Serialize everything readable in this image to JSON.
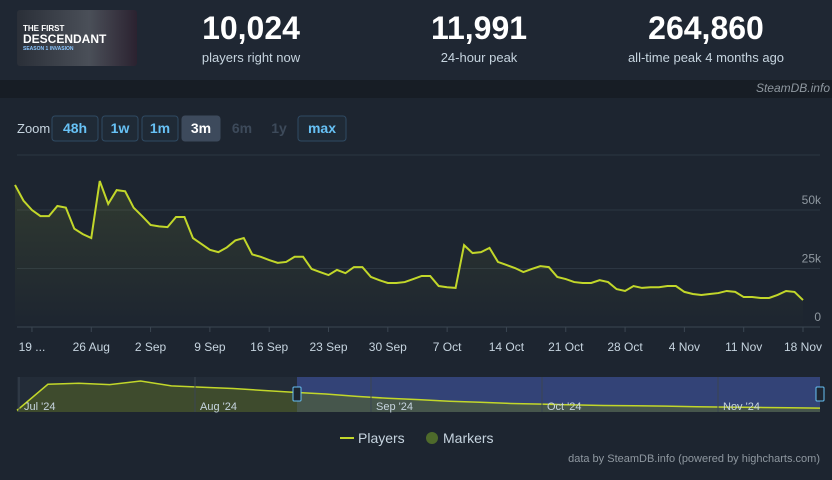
{
  "logo": [
    "THE FIRST",
    "DESCENDANT",
    "SEASON 1 INVASION"
  ],
  "stats": [
    {
      "value": "10,024",
      "label": "players right now"
    },
    {
      "value": "11,991",
      "label": "24-hour peak"
    },
    {
      "value": "264,860",
      "label": "all-time peak 4 months ago"
    }
  ],
  "site": "SteamDB.info",
  "zoom": {
    "label": "Zoom",
    "buttons": [
      "48h",
      "1w",
      "1m",
      "3m",
      "6m",
      "1y",
      "max"
    ],
    "selected": "3m",
    "disabled": [
      "6m",
      "1y"
    ]
  },
  "chart_data": {
    "type": "line",
    "categories": [
      null,
      null,
      "19 ...",
      null,
      null,
      null,
      null,
      null,
      null,
      "26 Aug",
      null,
      null,
      null,
      null,
      null,
      null,
      "2 Sep",
      null,
      null,
      null,
      null,
      null,
      null,
      "9 Sep",
      null,
      null,
      null,
      null,
      null,
      null,
      "16 Sep",
      null,
      null,
      null,
      null,
      null,
      null,
      "23 Sep",
      null,
      null,
      null,
      null,
      null,
      null,
      "30 Sep",
      null,
      null,
      null,
      null,
      null,
      null,
      "7 Oct",
      null,
      null,
      null,
      null,
      null,
      null,
      "14 Oct",
      null,
      null,
      null,
      null,
      null,
      null,
      "21 Oct",
      null,
      null,
      null,
      null,
      null,
      null,
      "28 Oct",
      null,
      null,
      null,
      null,
      null,
      null,
      "4 Nov",
      null,
      null,
      null,
      null,
      null,
      null,
      "11 Nov",
      null,
      null,
      null,
      null,
      null,
      null,
      "18 Nov"
    ],
    "series": [
      {
        "name": "Players",
        "color": "#c2d72a",
        "values": [
          60700,
          54000,
          50000,
          47400,
          47400,
          51700,
          51000,
          42000,
          39700,
          38000,
          62400,
          52600,
          58500,
          58000,
          51000,
          47400,
          43600,
          43000,
          42700,
          47000,
          47000,
          38000,
          35500,
          33000,
          32000,
          34000,
          37000,
          38000,
          31000,
          30000,
          28600,
          27400,
          27800,
          30000,
          30000,
          24800,
          23500,
          22200,
          24400,
          23000,
          25600,
          25600,
          21400,
          20000,
          18800,
          18800,
          19200,
          20500,
          21800,
          21800,
          17500,
          17000,
          16700,
          35000,
          31600,
          32000,
          33800,
          27800,
          26500,
          25200,
          23500,
          24800,
          26000,
          25600,
          21400,
          20500,
          19200,
          18800,
          18800,
          20000,
          19200,
          16200,
          15400,
          17500,
          16700,
          17000,
          17000,
          17500,
          17500,
          15000,
          14100,
          13700,
          14100,
          14500,
          15400,
          15000,
          12800,
          12800,
          12400,
          12400,
          13700,
          15400,
          15000,
          11500
        ]
      }
    ],
    "marker_series": {
      "name": "Markers",
      "color": "#4e6a2b"
    },
    "ylim": [
      0,
      75000
    ],
    "yticks": [
      0,
      {
        "value": 25000,
        "label": "25k"
      },
      {
        "value": 50000,
        "label": "50k"
      }
    ],
    "grid": true
  },
  "navigator": {
    "labels": [
      "Jul '24",
      "Aug '24",
      "Sep '24",
      "Oct '24",
      "Nov '24"
    ],
    "values": [
      5000,
      85000,
      88000,
      84000,
      95000,
      80000,
      76000,
      72000,
      66000,
      60000,
      55000,
      48000,
      42000,
      38000,
      33000,
      30000,
      26000,
      24000,
      22000,
      20000,
      19000,
      18000,
      16000,
      15000,
      14000,
      13000,
      12000
    ]
  },
  "credits": "data by SteamDB.info (powered by highcharts.com)"
}
